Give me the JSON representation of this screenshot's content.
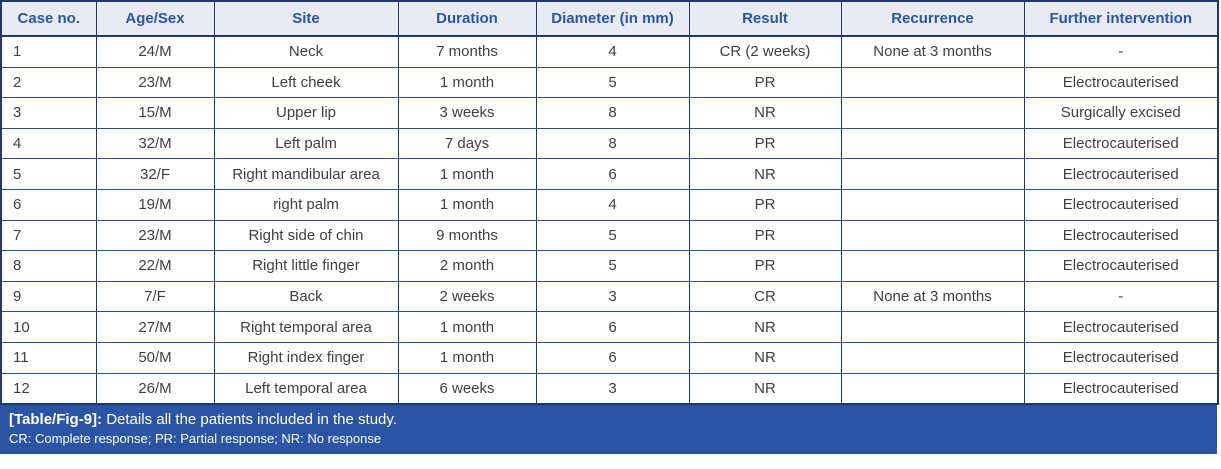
{
  "table": {
    "columns": [
      "Case no.",
      "Age/Sex",
      "Site",
      "Duration",
      "Diameter (in mm)",
      "Result",
      "Recurrence",
      "Further intervention"
    ],
    "rows": [
      [
        "1",
        "24/M",
        "Neck",
        "7 months",
        "4",
        "CR (2 weeks)",
        "None at 3 months",
        "-"
      ],
      [
        "2",
        "23/M",
        "Left cheek",
        "1 month",
        "5",
        "PR",
        "",
        "Electrocauterised"
      ],
      [
        "3",
        "15/M",
        "Upper lip",
        "3 weeks",
        "8",
        "NR",
        "",
        "Surgically excised"
      ],
      [
        "4",
        "32/M",
        "Left palm",
        "7 days",
        "8",
        "PR",
        "",
        "Electrocauterised"
      ],
      [
        "5",
        "32/F",
        "Right mandibular area",
        "1 month",
        "6",
        "NR",
        "",
        "Electrocauterised"
      ],
      [
        "6",
        "19/M",
        "right palm",
        "1 month",
        "4",
        "PR",
        "",
        "Electrocauterised"
      ],
      [
        "7",
        "23/M",
        "Right side of chin",
        "9 months",
        "5",
        "PR",
        "",
        "Electrocauterised"
      ],
      [
        "8",
        "22/M",
        "Right little finger",
        "2 month",
        "5",
        "PR",
        "",
        "Electrocauterised"
      ],
      [
        "9",
        "7/F",
        "Back",
        "2 weeks",
        "3",
        "CR",
        "None at 3 months",
        "-"
      ],
      [
        "10",
        "27/M",
        "Right temporal area",
        "1 month",
        "6",
        "NR",
        "",
        "Electrocauterised"
      ],
      [
        "11",
        "50/M",
        "Right index finger",
        "1 month",
        "6",
        "NR",
        "",
        "Electrocauterised"
      ],
      [
        "12",
        "26/M",
        "Left temporal area",
        "6 weeks",
        "3",
        "NR",
        "",
        "Electrocauterised"
      ]
    ]
  },
  "caption": {
    "label": "[Table/Fig-9]:",
    "text": " Details all the patients included in the study.",
    "footnote": "CR: Complete response; PR: Partial response; NR: No response"
  },
  "colors": {
    "header_bg": "#e9ebf2",
    "header_text": "#2d55a5",
    "border_dark": "#1e3a6a",
    "row_border": "#2d4f8f",
    "body_text": "#404040",
    "caption_bg": "#2b55a4",
    "caption_text": "#ffffff"
  }
}
